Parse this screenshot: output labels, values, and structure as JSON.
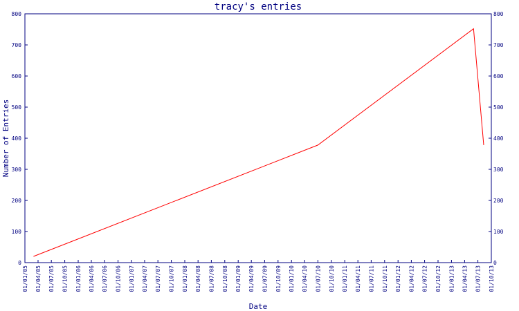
{
  "chart_data": {
    "type": "line",
    "title": "tracy's entries",
    "xlabel": "Date",
    "ylabel": "Number of Entries",
    "x_ticks": [
      "01/01/05",
      "01/04/05",
      "01/07/05",
      "01/10/05",
      "01/01/06",
      "01/04/06",
      "01/07/06",
      "01/10/06",
      "01/01/07",
      "01/04/07",
      "01/07/07",
      "01/10/07",
      "01/01/08",
      "01/04/08",
      "01/07/08",
      "01/10/08",
      "01/01/09",
      "01/04/09",
      "01/07/09",
      "01/10/09",
      "01/01/10",
      "01/04/10",
      "01/07/10",
      "01/10/10",
      "01/01/11",
      "01/04/11",
      "01/07/11",
      "01/10/11",
      "01/01/12",
      "01/04/12",
      "01/07/12",
      "01/10/12",
      "01/01/13",
      "01/04/13",
      "01/07/13",
      "01/10/13"
    ],
    "ylim": [
      0,
      800
    ],
    "y_ticks": [
      "0",
      "100",
      "200",
      "300",
      "400",
      "500",
      "600",
      "700",
      "800"
    ],
    "grid": false,
    "series": [
      {
        "color": "#ff0000",
        "points": [
          {
            "x": "2005-03-01",
            "y": 20
          },
          {
            "x": "2010-07-01",
            "y": 378
          },
          {
            "x": "2013-06-01",
            "y": 752
          },
          {
            "x": "2013-08-10",
            "y": 378
          }
        ]
      }
    ],
    "colors": {
      "axis": "#000080",
      "line": "#ff0000",
      "background": "#ffffff"
    }
  }
}
